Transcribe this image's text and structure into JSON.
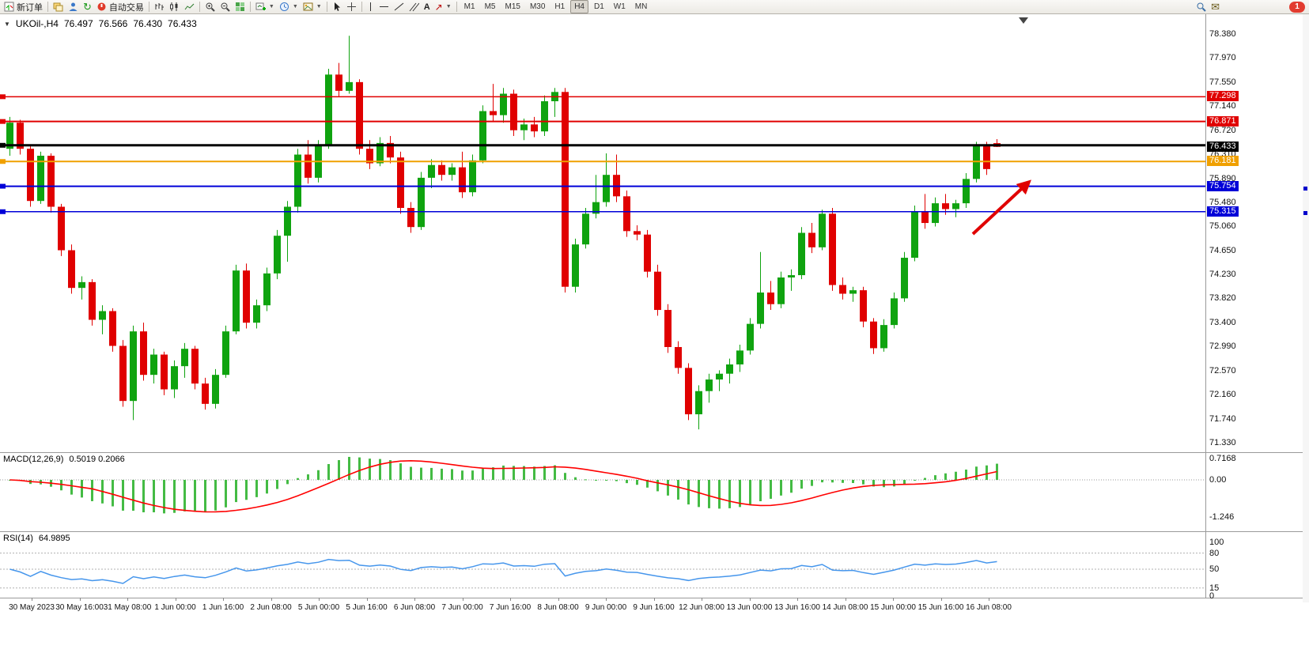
{
  "toolbar": {
    "new_order": "新订单",
    "autotrading": "自动交易",
    "text_tool": "A",
    "timeframes": [
      {
        "label": "M1",
        "active": false
      },
      {
        "label": "M5",
        "active": false
      },
      {
        "label": "M15",
        "active": false
      },
      {
        "label": "M30",
        "active": false
      },
      {
        "label": "H1",
        "active": false
      },
      {
        "label": "H4",
        "active": true
      },
      {
        "label": "D1",
        "active": false
      },
      {
        "label": "W1",
        "active": false
      },
      {
        "label": "MN",
        "active": false
      }
    ],
    "notification_count": "1"
  },
  "chart": {
    "symbol_period": "UKOil-,H4",
    "ohlc_header": {
      "open": "76.497",
      "high": "76.566",
      "low": "76.430",
      "close": "76.433"
    },
    "price_axis": [
      78.38,
      77.97,
      77.55,
      77.14,
      76.72,
      76.31,
      75.89,
      75.48,
      75.06,
      74.65,
      74.23,
      73.82,
      73.4,
      72.99,
      72.57,
      72.16,
      71.74,
      71.33
    ],
    "price_tags": [
      {
        "text": "77.298",
        "price": 77.298,
        "color": "#e00000"
      },
      {
        "text": "76.871",
        "price": 76.871,
        "color": "#e00000"
      },
      {
        "text": "76.433",
        "price": 76.433,
        "color": "#000000"
      },
      {
        "text": "76.181",
        "price": 76.181,
        "color": "#f0a000"
      },
      {
        "text": "75.754",
        "price": 75.754,
        "color": "#0000d8"
      },
      {
        "text": "75.315",
        "price": 75.315,
        "color": "#0000d8"
      }
    ],
    "hlines": [
      {
        "price": 77.298,
        "color": "#e00000",
        "width": 1.5
      },
      {
        "price": 76.871,
        "color": "#e00000",
        "width": 2
      },
      {
        "price": 76.46,
        "color": "#000000",
        "width": 3
      },
      {
        "price": 76.181,
        "color": "#f0a000",
        "width": 2
      },
      {
        "price": 75.754,
        "color": "#0000d8",
        "width": 2
      },
      {
        "price": 75.315,
        "color": "#0000d8",
        "width": 1.5
      }
    ],
    "time_axis": [
      "30 May 2023",
      "30 May 16:00",
      "31 May 08:00",
      "1 Jun 00:00",
      "1 Jun 16:00",
      "2 Jun 08:00",
      "5 Jun 00:00",
      "5 Jun 16:00",
      "6 Jun 08:00",
      "7 Jun 00:00",
      "7 Jun 16:00",
      "8 Jun 08:00",
      "9 Jun 00:00",
      "9 Jun 16:00",
      "12 Jun 08:00",
      "13 Jun 00:00",
      "13 Jun 16:00",
      "14 Jun 08:00",
      "15 Jun 00:00",
      "15 Jun 16:00",
      "16 Jun 08:00"
    ]
  },
  "chart_data": {
    "type": "candlestick",
    "symbol": "UKOil-",
    "timeframe": "H4",
    "title": "UKOil-,H4 76.497 76.566 76.430 76.433",
    "y_range": [
      71.17,
      78.72
    ],
    "up_color": "#0fa30f",
    "down_color": "#e00000",
    "ohlc": [
      [
        76.4,
        76.95,
        76.28,
        76.85
      ],
      [
        76.85,
        76.9,
        76.3,
        76.4
      ],
      [
        76.4,
        76.45,
        75.4,
        75.5
      ],
      [
        75.5,
        76.35,
        75.45,
        76.28
      ],
      [
        76.28,
        76.32,
        75.3,
        75.4
      ],
      [
        75.4,
        75.45,
        74.55,
        74.65
      ],
      [
        74.65,
        74.75,
        73.9,
        74.0
      ],
      [
        74.0,
        74.2,
        73.8,
        74.1
      ],
      [
        74.1,
        74.15,
        73.35,
        73.45
      ],
      [
        73.45,
        73.7,
        73.2,
        73.6
      ],
      [
        73.6,
        73.65,
        72.9,
        73.0
      ],
      [
        73.0,
        73.1,
        71.95,
        72.05
      ],
      [
        72.05,
        73.35,
        71.72,
        73.25
      ],
      [
        73.25,
        73.4,
        72.4,
        72.5
      ],
      [
        72.5,
        72.95,
        72.35,
        72.85
      ],
      [
        72.85,
        72.9,
        72.15,
        72.25
      ],
      [
        72.25,
        72.75,
        72.1,
        72.65
      ],
      [
        72.65,
        73.05,
        72.45,
        72.95
      ],
      [
        72.95,
        73.0,
        72.25,
        72.35
      ],
      [
        72.35,
        72.45,
        71.9,
        72.0
      ],
      [
        72.0,
        72.6,
        71.92,
        72.5
      ],
      [
        72.5,
        73.35,
        72.45,
        73.25
      ],
      [
        73.25,
        74.4,
        73.2,
        74.3
      ],
      [
        74.3,
        74.42,
        73.3,
        73.4
      ],
      [
        73.4,
        73.8,
        73.3,
        73.7
      ],
      [
        73.7,
        74.35,
        73.6,
        74.25
      ],
      [
        74.25,
        75.0,
        74.15,
        74.9
      ],
      [
        74.9,
        75.5,
        74.45,
        75.4
      ],
      [
        75.4,
        76.4,
        75.3,
        76.3
      ],
      [
        76.3,
        76.55,
        75.8,
        75.9
      ],
      [
        75.9,
        76.55,
        75.82,
        76.45
      ],
      [
        76.45,
        77.78,
        76.4,
        77.68
      ],
      [
        77.68,
        77.88,
        77.3,
        77.4
      ],
      [
        77.4,
        78.35,
        77.35,
        77.55
      ],
      [
        77.55,
        77.6,
        76.3,
        76.4
      ],
      [
        76.4,
        76.55,
        76.05,
        76.15
      ],
      [
        76.15,
        76.6,
        76.1,
        76.5
      ],
      [
        76.5,
        76.62,
        76.15,
        76.25
      ],
      [
        76.25,
        76.35,
        75.28,
        75.38
      ],
      [
        75.38,
        75.48,
        74.95,
        75.05
      ],
      [
        75.05,
        76.0,
        75.0,
        75.9
      ],
      [
        75.9,
        76.22,
        75.72,
        76.12
      ],
      [
        76.12,
        76.2,
        75.85,
        75.95
      ],
      [
        75.95,
        76.15,
        75.85,
        76.08
      ],
      [
        76.08,
        76.35,
        75.55,
        75.65
      ],
      [
        75.65,
        76.3,
        75.58,
        76.2
      ],
      [
        76.2,
        77.15,
        76.15,
        77.05
      ],
      [
        77.05,
        77.52,
        76.88,
        76.98
      ],
      [
        76.98,
        77.45,
        76.85,
        77.35
      ],
      [
        77.35,
        77.42,
        76.62,
        76.72
      ],
      [
        76.72,
        76.92,
        76.55,
        76.82
      ],
      [
        76.82,
        76.95,
        76.6,
        76.7
      ],
      [
        76.7,
        77.32,
        76.62,
        77.22
      ],
      [
        77.22,
        77.45,
        76.95,
        77.38
      ],
      [
        77.38,
        77.45,
        73.92,
        74.02
      ],
      [
        74.02,
        74.85,
        73.92,
        74.75
      ],
      [
        74.75,
        75.38,
        74.68,
        75.28
      ],
      [
        75.28,
        75.95,
        75.2,
        75.48
      ],
      [
        75.48,
        76.32,
        75.4,
        75.95
      ],
      [
        75.95,
        76.3,
        75.48,
        75.58
      ],
      [
        75.58,
        75.68,
        74.88,
        74.98
      ],
      [
        74.98,
        75.08,
        74.82,
        74.92
      ],
      [
        74.92,
        75.0,
        74.18,
        74.28
      ],
      [
        74.28,
        74.4,
        73.52,
        73.62
      ],
      [
        73.62,
        73.72,
        72.88,
        72.98
      ],
      [
        72.98,
        73.08,
        72.52,
        72.62
      ],
      [
        72.62,
        72.7,
        71.72,
        71.82
      ],
      [
        71.82,
        72.32,
        71.56,
        72.22
      ],
      [
        72.22,
        72.52,
        72.02,
        72.42
      ],
      [
        72.42,
        72.58,
        72.22,
        72.52
      ],
      [
        72.52,
        72.78,
        72.35,
        72.68
      ],
      [
        72.68,
        73.02,
        72.55,
        72.92
      ],
      [
        72.92,
        73.48,
        72.85,
        73.38
      ],
      [
        73.38,
        74.62,
        73.3,
        73.92
      ],
      [
        73.92,
        74.12,
        73.62,
        73.72
      ],
      [
        73.72,
        74.28,
        73.65,
        74.18
      ],
      [
        74.18,
        74.32,
        73.95,
        74.22
      ],
      [
        74.22,
        75.05,
        74.15,
        74.95
      ],
      [
        74.95,
        75.12,
        74.6,
        74.7
      ],
      [
        74.7,
        75.35,
        74.65,
        75.28
      ],
      [
        75.28,
        75.38,
        73.95,
        74.05
      ],
      [
        74.05,
        74.18,
        73.8,
        73.9
      ],
      [
        73.9,
        74.02,
        73.76,
        73.96
      ],
      [
        73.96,
        74.02,
        73.32,
        73.42
      ],
      [
        73.42,
        73.48,
        72.86,
        72.96
      ],
      [
        72.96,
        73.46,
        72.9,
        73.36
      ],
      [
        73.36,
        73.92,
        73.3,
        73.82
      ],
      [
        73.82,
        74.62,
        73.76,
        74.52
      ],
      [
        74.52,
        75.42,
        74.46,
        75.32
      ],
      [
        75.32,
        75.62,
        75.02,
        75.12
      ],
      [
        75.12,
        75.56,
        75.06,
        75.46
      ],
      [
        75.46,
        75.62,
        75.26,
        75.36
      ],
      [
        75.36,
        75.52,
        75.22,
        75.46
      ],
      [
        75.46,
        75.98,
        75.38,
        75.88
      ],
      [
        75.88,
        76.52,
        75.82,
        76.45
      ],
      [
        76.45,
        76.52,
        75.95,
        76.05
      ],
      [
        76.497,
        76.566,
        76.43,
        76.433
      ]
    ],
    "indicators": [
      {
        "name": "MACD",
        "params": [
          12,
          26,
          9
        ],
        "last_values": [
          0.5019,
          0.2066
        ],
        "axis": [
          0.7168,
          0.0,
          -1.246
        ]
      },
      {
        "name": "RSI",
        "params": [
          14
        ],
        "last_value": 64.9895,
        "levels": [
          80,
          50,
          15
        ],
        "axis": [
          100,
          80,
          50,
          15,
          0
        ]
      }
    ]
  },
  "macd": {
    "label": "MACD(12,26,9)",
    "values": "0.5019 0.2066",
    "axis_values": [
      0.7168,
      0.0,
      -1.246
    ],
    "axis_labels": [
      "0.7168",
      "0.00",
      "-1.246"
    ],
    "bar_color": "#44bb44",
    "line_color": "#ff0000"
  },
  "rsi": {
    "label": "RSI(14)",
    "value": "64.9895",
    "axis_values": [
      100,
      80,
      50,
      15,
      0
    ],
    "axis_labels": [
      "100",
      "80",
      "50",
      "15",
      "0"
    ],
    "levels": [
      80,
      50,
      15
    ],
    "line_color": "#4696ec"
  },
  "annotation": {
    "arrow_color": "#e00000"
  }
}
